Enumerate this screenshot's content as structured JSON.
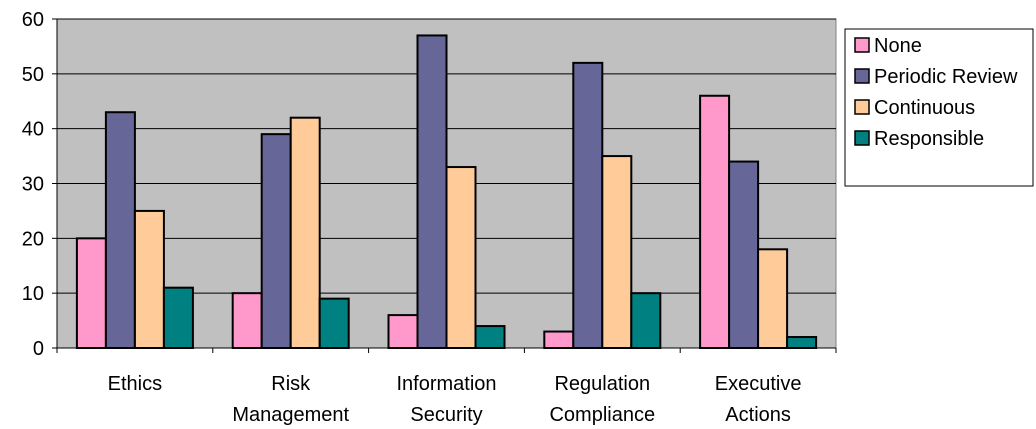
{
  "chart_data": {
    "type": "bar",
    "title": "",
    "xlabel": "",
    "ylabel": "",
    "ylim": [
      0,
      60
    ],
    "y_ticks": [
      "0",
      "10",
      "20",
      "30",
      "40",
      "50",
      "60"
    ],
    "grid": true,
    "legend_position": "right",
    "plot_background": "#C0C0C0",
    "categories": [
      [
        "Ethics"
      ],
      [
        "Risk",
        "Management"
      ],
      [
        "Information",
        "Security"
      ],
      [
        "Regulation",
        "Compliance"
      ],
      [
        "Executive",
        "Actions"
      ]
    ],
    "series": [
      {
        "name": "None",
        "color": "#FF99CC",
        "values": [
          20,
          10,
          6,
          3,
          46
        ]
      },
      {
        "name": "Periodic Review",
        "color": "#666699",
        "values": [
          43,
          39,
          57,
          52,
          34
        ]
      },
      {
        "name": "Continuous",
        "color": "#FFCC99",
        "values": [
          25,
          42,
          33,
          35,
          18
        ]
      },
      {
        "name": "Responsible",
        "color": "#008080",
        "values": [
          11,
          9,
          4,
          10,
          2
        ]
      }
    ]
  }
}
